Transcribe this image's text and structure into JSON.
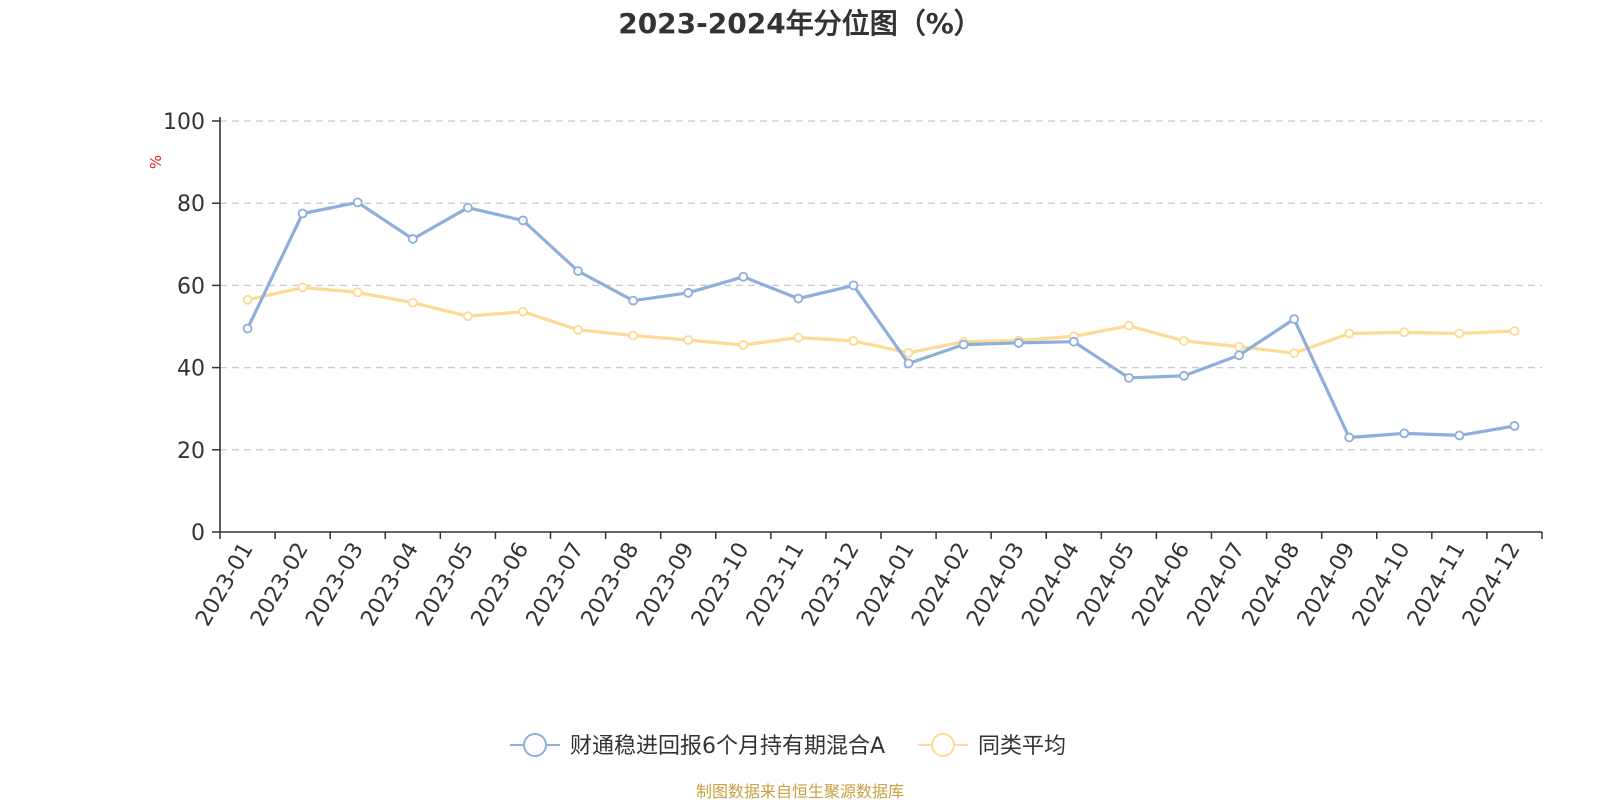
{
  "source_note": "制图数据来自恒生聚源数据库",
  "chart_data": {
    "type": "line",
    "title": "2023-2024年分位图（%）",
    "ylabel": "%",
    "xlabel": "",
    "ylim": [
      0,
      100
    ],
    "yticks": [
      0,
      20,
      40,
      60,
      80,
      100
    ],
    "grid": true,
    "legend_position": "bottom",
    "categories": [
      "2023-01",
      "2023-02",
      "2023-03",
      "2023-04",
      "2023-05",
      "2023-06",
      "2023-07",
      "2023-08",
      "2023-09",
      "2023-10",
      "2023-11",
      "2023-12",
      "2024-01",
      "2024-02",
      "2024-03",
      "2024-04",
      "2024-05",
      "2024-06",
      "2024-07",
      "2024-08",
      "2024-09",
      "2024-10",
      "2024-11",
      "2024-12"
    ],
    "series": [
      {
        "name": "财通稳进回报6个月持有期混合A",
        "color": "#8eaedb",
        "values": [
          49.5,
          77.5,
          80.2,
          71.3,
          78.9,
          75.8,
          63.5,
          56.3,
          58.2,
          62.1,
          56.8,
          60.0,
          41.0,
          45.6,
          46.0,
          46.3,
          37.5,
          38.0,
          43.0,
          51.8,
          23.0,
          24.0,
          23.5,
          25.8
        ]
      },
      {
        "name": "同类平均",
        "color": "#fddb95",
        "values": [
          56.5,
          59.5,
          58.3,
          55.8,
          52.5,
          53.6,
          49.2,
          47.8,
          46.7,
          45.5,
          47.3,
          46.5,
          43.6,
          46.3,
          46.6,
          47.6,
          50.2,
          46.5,
          45.1,
          43.5,
          48.3,
          48.6,
          48.3,
          48.9
        ]
      }
    ]
  }
}
